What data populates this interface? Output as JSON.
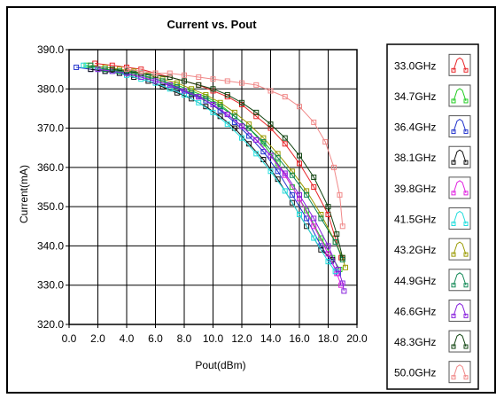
{
  "chart_data": {
    "type": "line",
    "title": "Current vs. Pout",
    "xlabel": "Pout(dBm)",
    "ylabel": "Current(mA)",
    "xlim": [
      0.0,
      20.0
    ],
    "ylim": [
      320.0,
      390.0
    ],
    "x_ticks": [
      "0.0",
      "2.0",
      "4.0",
      "6.0",
      "8.0",
      "10.0",
      "12.0",
      "14.0",
      "16.0",
      "18.0",
      "20.0"
    ],
    "y_ticks": [
      "320.0",
      "330.0",
      "340.0",
      "350.0",
      "360.0",
      "370.0",
      "380.0",
      "390.0"
    ],
    "grid": true,
    "legend_position": "right",
    "series": [
      {
        "name": "33.0GHz",
        "color": "#e8262a",
        "points": [
          [
            1.8,
            386.5
          ],
          [
            3,
            386
          ],
          [
            4,
            385.5
          ],
          [
            5,
            385
          ],
          [
            6,
            384
          ],
          [
            7,
            383
          ],
          [
            8,
            382
          ],
          [
            9,
            381
          ],
          [
            10,
            379.5
          ],
          [
            11,
            378
          ],
          [
            12,
            376
          ],
          [
            13,
            373
          ],
          [
            14,
            370
          ],
          [
            15,
            366
          ],
          [
            16,
            361
          ],
          [
            17,
            355
          ],
          [
            18,
            348
          ],
          [
            18.5,
            342
          ],
          [
            18.9,
            337
          ]
        ]
      },
      {
        "name": "34.7GHz",
        "color": "#22cc22",
        "points": [
          [
            1.2,
            386
          ],
          [
            2.5,
            385
          ],
          [
            3.5,
            384.5
          ],
          [
            4.5,
            384
          ],
          [
            5.5,
            383
          ],
          [
            6.5,
            382
          ],
          [
            7.5,
            381
          ],
          [
            8.5,
            379.5
          ],
          [
            9.5,
            378
          ],
          [
            10.5,
            376
          ],
          [
            11.5,
            373
          ],
          [
            12.5,
            370
          ],
          [
            13.5,
            366
          ],
          [
            14.5,
            361
          ],
          [
            15.5,
            355
          ],
          [
            16.5,
            349
          ],
          [
            17.5,
            342
          ],
          [
            18.3,
            337
          ],
          [
            18.8,
            334
          ]
        ]
      },
      {
        "name": "36.4GHz",
        "color": "#2233cc",
        "points": [
          [
            0.5,
            385.5
          ],
          [
            1.5,
            385
          ],
          [
            2.5,
            384.5
          ],
          [
            3.5,
            384
          ],
          [
            4.5,
            383.5
          ],
          [
            5.5,
            382.5
          ],
          [
            6.5,
            381.5
          ],
          [
            7.5,
            380
          ],
          [
            8.5,
            378.5
          ],
          [
            9.5,
            377
          ],
          [
            10.5,
            374.5
          ],
          [
            11.5,
            371.5
          ],
          [
            12.5,
            368
          ],
          [
            13.5,
            364
          ],
          [
            14.5,
            359
          ],
          [
            15.5,
            353
          ],
          [
            16.5,
            347
          ],
          [
            17.5,
            340
          ],
          [
            18.2,
            336
          ],
          [
            18.7,
            333
          ]
        ]
      },
      {
        "name": "38.1GHz",
        "color": "#111111",
        "points": [
          [
            1.5,
            385
          ],
          [
            2.5,
            384.5
          ],
          [
            3.5,
            384
          ],
          [
            4.5,
            383
          ],
          [
            5.5,
            382
          ],
          [
            6.5,
            380.5
          ],
          [
            7.5,
            379
          ],
          [
            8.5,
            377.5
          ],
          [
            9.5,
            375.5
          ],
          [
            10.5,
            373
          ],
          [
            11.5,
            370
          ],
          [
            12.5,
            366
          ],
          [
            13.5,
            362
          ],
          [
            14.5,
            357
          ],
          [
            15.5,
            351
          ],
          [
            16.5,
            345
          ],
          [
            17.5,
            339
          ],
          [
            18.3,
            336.5
          ]
        ]
      },
      {
        "name": "39.8GHz",
        "color": "#e020e0",
        "points": [
          [
            2,
            385
          ],
          [
            3,
            384.5
          ],
          [
            4,
            384
          ],
          [
            5,
            383
          ],
          [
            6,
            382
          ],
          [
            7,
            381
          ],
          [
            8,
            379.5
          ],
          [
            9,
            378
          ],
          [
            10,
            376
          ],
          [
            11,
            373.5
          ],
          [
            12,
            370.5
          ],
          [
            13,
            367
          ],
          [
            14,
            363
          ],
          [
            15,
            358
          ],
          [
            16,
            352
          ],
          [
            17,
            345
          ],
          [
            18,
            338
          ],
          [
            18.6,
            333
          ],
          [
            18.9,
            330
          ]
        ]
      },
      {
        "name": "41.5GHz",
        "color": "#22dddd",
        "points": [
          [
            1,
            386
          ],
          [
            2,
            385
          ],
          [
            3,
            384.5
          ],
          [
            4,
            383.5
          ],
          [
            5,
            382.5
          ],
          [
            6,
            381.5
          ],
          [
            7,
            380
          ],
          [
            8,
            378.5
          ],
          [
            9,
            376.5
          ],
          [
            10,
            374
          ],
          [
            11,
            371
          ],
          [
            12,
            367.5
          ],
          [
            13,
            363.5
          ],
          [
            14,
            359
          ],
          [
            15,
            354
          ],
          [
            16,
            348
          ],
          [
            17,
            342
          ],
          [
            18,
            336
          ],
          [
            18.5,
            333.5
          ]
        ]
      },
      {
        "name": "43.2GHz",
        "color": "#9a9a00",
        "points": [
          [
            1.5,
            386
          ],
          [
            2.5,
            385.5
          ],
          [
            3.5,
            385
          ],
          [
            4.5,
            384.5
          ],
          [
            5.5,
            383.5
          ],
          [
            6.5,
            382.5
          ],
          [
            7.5,
            381.5
          ],
          [
            8.5,
            380
          ],
          [
            9.5,
            378.5
          ],
          [
            10.5,
            376.5
          ],
          [
            11.5,
            374
          ],
          [
            12.5,
            371
          ],
          [
            13.5,
            367.5
          ],
          [
            14.5,
            363.5
          ],
          [
            15.5,
            359
          ],
          [
            16.5,
            354
          ],
          [
            17.5,
            348
          ],
          [
            18.5,
            341
          ],
          [
            19,
            337
          ],
          [
            19.2,
            334.5
          ]
        ]
      },
      {
        "name": "44.9GHz",
        "color": "#118855",
        "points": [
          [
            1.5,
            386
          ],
          [
            2.5,
            385
          ],
          [
            3.5,
            384.5
          ],
          [
            4.5,
            384
          ],
          [
            5.5,
            383
          ],
          [
            6.5,
            382
          ],
          [
            7.5,
            380.5
          ],
          [
            8.5,
            379
          ],
          [
            9.5,
            377.5
          ],
          [
            10.5,
            375.5
          ],
          [
            11.5,
            373
          ],
          [
            12.5,
            370
          ],
          [
            13.5,
            366.5
          ],
          [
            14.5,
            362.5
          ],
          [
            15.5,
            358
          ],
          [
            16.5,
            353
          ],
          [
            17.5,
            347
          ],
          [
            18.5,
            341
          ],
          [
            19,
            336.5
          ]
        ]
      },
      {
        "name": "46.6GHz",
        "color": "#8822dd",
        "points": [
          [
            2,
            385
          ],
          [
            3,
            384.5
          ],
          [
            4,
            384
          ],
          [
            5,
            383
          ],
          [
            6,
            382
          ],
          [
            7,
            381
          ],
          [
            8,
            379.5
          ],
          [
            9,
            378
          ],
          [
            10,
            376
          ],
          [
            11,
            373.5
          ],
          [
            12,
            370.5
          ],
          [
            13,
            367
          ],
          [
            14,
            363
          ],
          [
            15,
            358.5
          ],
          [
            16,
            353
          ],
          [
            17,
            347
          ],
          [
            18,
            340
          ],
          [
            18.7,
            334
          ],
          [
            19,
            330.5
          ],
          [
            19.1,
            328.5
          ]
        ]
      },
      {
        "name": "48.3GHz",
        "color": "#114411",
        "points": [
          [
            3,
            385
          ],
          [
            4,
            384.5
          ],
          [
            5,
            384
          ],
          [
            6,
            383.5
          ],
          [
            7,
            383
          ],
          [
            8,
            382
          ],
          [
            9,
            381
          ],
          [
            10,
            380
          ],
          [
            11,
            378.5
          ],
          [
            12,
            376.5
          ],
          [
            13,
            374
          ],
          [
            14,
            371
          ],
          [
            15,
            367.5
          ],
          [
            16,
            363
          ],
          [
            17,
            357.5
          ],
          [
            18,
            350
          ],
          [
            18.6,
            343
          ],
          [
            19,
            337
          ]
        ]
      },
      {
        "name": "50.0GHz",
        "color": "#f08888",
        "points": [
          [
            4,
            385
          ],
          [
            5,
            384.5
          ],
          [
            6,
            384
          ],
          [
            7,
            384
          ],
          [
            8,
            383.5
          ],
          [
            9,
            383
          ],
          [
            10,
            382.5
          ],
          [
            11,
            382
          ],
          [
            12,
            381.5
          ],
          [
            13,
            381
          ],
          [
            14,
            379.5
          ],
          [
            15,
            378
          ],
          [
            16,
            375.5
          ],
          [
            17,
            371.5
          ],
          [
            17.8,
            366.5
          ],
          [
            18.4,
            360
          ],
          [
            18.8,
            353
          ],
          [
            19,
            345
          ]
        ]
      }
    ]
  }
}
